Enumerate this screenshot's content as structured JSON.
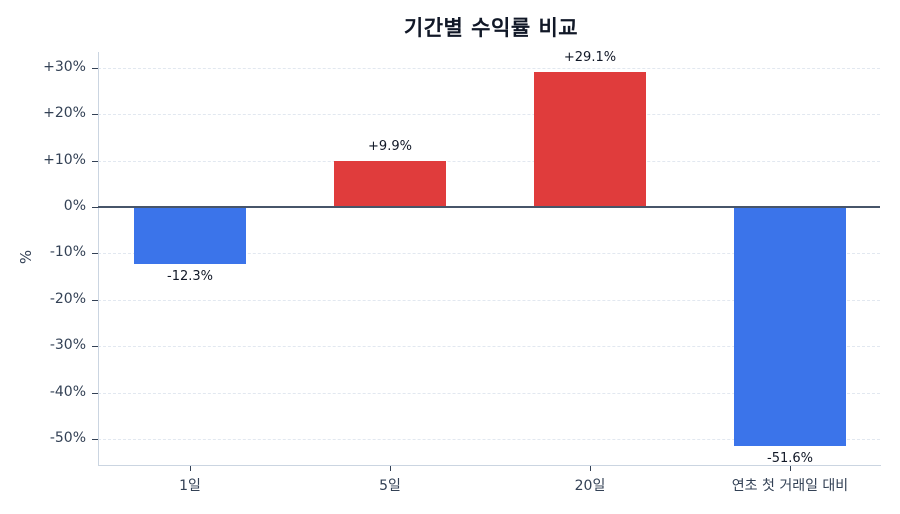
{
  "chart_data": {
    "type": "bar",
    "title": "기간별 수익률 비교",
    "xlabel": "",
    "ylabel": "%",
    "categories": [
      "1일",
      "5일",
      "20일",
      "연초 첫 거래일 대비"
    ],
    "values": [
      -12.3,
      9.9,
      29.1,
      -51.6
    ],
    "value_labels": [
      "-12.3%",
      "+9.9%",
      "+29.1%",
      "-51.6%"
    ],
    "bar_colors": [
      "#3b74ea",
      "#e03c3c",
      "#e03c3c",
      "#3b74ea"
    ],
    "colors": {
      "positive": "#e03c3c",
      "negative": "#3b74ea",
      "zero_line": "#475569",
      "grid": "#e2e8f0"
    },
    "ylim": [
      -55.6,
      33.1
    ],
    "yticks": [
      30,
      20,
      10,
      0,
      -10,
      -20,
      -30,
      -40,
      -50
    ],
    "ytick_labels": [
      "+30%",
      "+20%",
      "+10%",
      "0%",
      "-10%",
      "-20%",
      "-30%",
      "-40%",
      "-50%"
    ],
    "grid": true,
    "grid_style": "dashed horizontal",
    "legend": null
  }
}
